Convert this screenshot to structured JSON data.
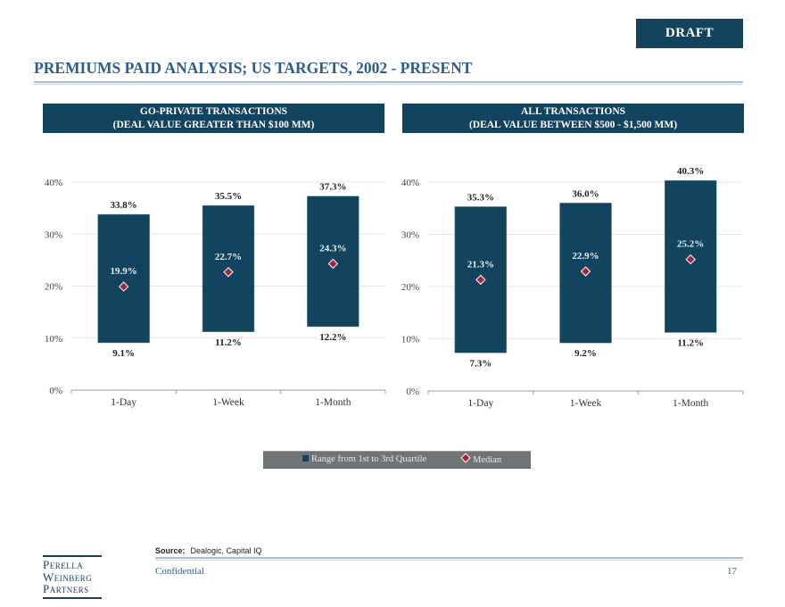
{
  "badge": "DRAFT",
  "title": "PREMIUMS PAID ANALYSIS; US TARGETS, 2002 - PRESENT",
  "colors": {
    "bar": "#12445f",
    "median": "#a2263d",
    "title": "#2a5d90",
    "legend_bg": "#6f7576"
  },
  "panels": {
    "left": {
      "line1": "GO-PRIVATE  TRANSACTIONS",
      "line2": "(DEAL VALUE GREATER THAN $100  MM)"
    },
    "right": {
      "line1": "ALL TRANSACTIONS",
      "line2": "(DEAL VALUE BETWEEN $500 - $1,500  MM)"
    }
  },
  "chart_data": [
    {
      "type": "bar",
      "subtype": "floating-range-with-median",
      "title": "GO-PRIVATE  TRANSACTIONS (DEAL VALUE GREATER THAN $100  MM)",
      "categories": [
        "1-Day",
        "1-Week",
        "1-Month"
      ],
      "yticks": [
        "0%",
        "10%",
        "20%",
        "30%",
        "40%"
      ],
      "ylim": [
        0,
        40
      ],
      "grid": true,
      "series": [
        {
          "name": "Range from 1st to 3rd Quartile",
          "low": [
            9.1,
            11.2,
            12.2
          ],
          "high": [
            33.8,
            35.5,
            37.3
          ],
          "low_labels": [
            "9.1%",
            "11.2%",
            "12.2%"
          ],
          "high_labels": [
            "33.8%",
            "35.5%",
            "37.3%"
          ]
        },
        {
          "name": "Median",
          "values": [
            19.9,
            22.7,
            24.3
          ],
          "labels": [
            "19.9%",
            "22.7%",
            "24.3%"
          ]
        }
      ]
    },
    {
      "type": "bar",
      "subtype": "floating-range-with-median",
      "title": "ALL TRANSACTIONS (DEAL VALUE BETWEEN $500 - $1,500  MM)",
      "categories": [
        "1-Day",
        "1-Week",
        "1-Month"
      ],
      "yticks": [
        "0%",
        "10%",
        "20%",
        "30%",
        "40%"
      ],
      "ylim": [
        0,
        40
      ],
      "grid": true,
      "series": [
        {
          "name": "Range from 1st to 3rd Quartile",
          "low": [
            7.3,
            9.2,
            11.2
          ],
          "high": [
            35.3,
            36.0,
            40.3
          ],
          "low_labels": [
            "7.3%",
            "9.2%",
            "11.2%"
          ],
          "high_labels": [
            "35.3%",
            "36.0%",
            "40.3%"
          ]
        },
        {
          "name": "Median",
          "values": [
            21.3,
            22.9,
            25.2
          ],
          "labels": [
            "21.3%",
            "22.9%",
            "25.2%"
          ]
        }
      ]
    }
  ],
  "legend": {
    "items": [
      "Range from 1st to 3rd Quartile",
      "Median"
    ],
    "position": "bottom-center"
  },
  "footer": {
    "source_label": "Source:",
    "source_text": "Dealogic, Capital IQ",
    "confidential": "Confidential",
    "page": "17",
    "logo": [
      "Perella",
      "Weinberg",
      "Partners"
    ]
  }
}
